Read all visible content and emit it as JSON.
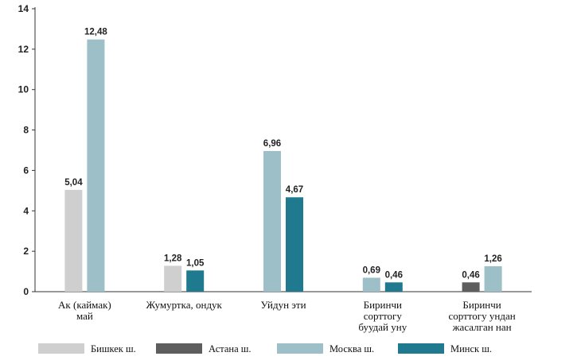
{
  "chart_data": {
    "type": "bar",
    "title": "",
    "xlabel": "",
    "ylabel": "",
    "ylim": [
      0,
      14
    ],
    "yticks": [
      0,
      2,
      4,
      6,
      8,
      10,
      12,
      14
    ],
    "grid": false,
    "legend_position": "bottom",
    "categories": [
      [
        "Ак (каймак)",
        "май"
      ],
      [
        "Жумуртка,  ондук"
      ],
      [
        "Уйдун эти"
      ],
      [
        "Биринчи",
        "сорттогу",
        "буудай уну"
      ],
      [
        "Биринчи",
        "сорттогу ундан",
        "жасалган нан"
      ]
    ],
    "series": [
      {
        "name": "Бишкек ш.",
        "color": "#cfcfcf",
        "values": [
          5.04,
          1.28,
          null,
          null,
          null
        ],
        "labels": [
          "5,04",
          "1,28",
          "",
          "",
          ""
        ]
      },
      {
        "name": "Астана ш.",
        "color": "#5e5e5e",
        "values": [
          null,
          null,
          null,
          null,
          0.46
        ],
        "labels": [
          "",
          "",
          "",
          "",
          "0,46"
        ]
      },
      {
        "name": "Москва ш.",
        "color": "#9dbfc7",
        "values": [
          12.48,
          null,
          6.96,
          0.69,
          1.26
        ],
        "labels": [
          "12,48",
          "",
          "6,96",
          "0,69",
          "1,26"
        ]
      },
      {
        "name": "Минск ш.",
        "color": "#207a8f",
        "values": [
          null,
          1.05,
          4.67,
          0.46,
          null
        ],
        "labels": [
          "",
          "1,05",
          "4,67",
          "0,46",
          ""
        ]
      }
    ]
  }
}
